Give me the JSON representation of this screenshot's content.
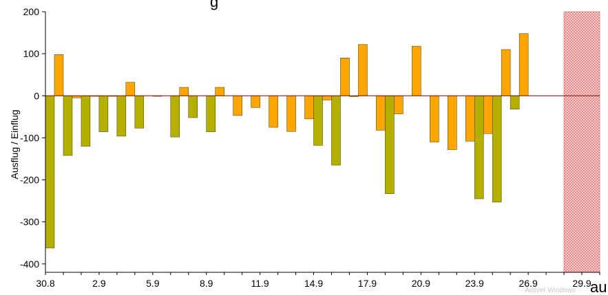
{
  "chart_data": {
    "type": "bar",
    "title": "",
    "ylabel": "Ausflug / Einflug",
    "xlabel": "",
    "ylim": [
      -420,
      200
    ],
    "y_ticks": [
      "200",
      "100",
      "0",
      "-100",
      "-200",
      "-300",
      "-400"
    ],
    "x_ticks": [
      "30.8",
      "2.9",
      "5.9",
      "8.9",
      "11.9",
      "14.9",
      "17.9",
      "20.9",
      "23.9",
      "26.9",
      "29.9"
    ],
    "num_days": 31,
    "shaded_from_day": 29,
    "colors": {
      "ausflug": "#ffa500",
      "einflug": "#b5b000",
      "shaded": "#f08080",
      "zero_line": "#800000"
    },
    "series": [
      {
        "values": [
          98,
          -5,
          0,
          0,
          32,
          null,
          null,
          20,
          null,
          20,
          -47,
          -28,
          -75,
          -85,
          -55,
          -10,
          90,
          122,
          -82,
          -43,
          118,
          -110,
          -128,
          -108,
          -90,
          110,
          148,
          null
        ]
      },
      {
        "values": [
          -362,
          -142,
          -120,
          -86,
          -96,
          -77,
          -1,
          -98,
          -52,
          -86,
          null,
          null,
          null,
          null,
          null,
          -118,
          -165,
          -2,
          null,
          -233,
          null,
          null,
          null,
          null,
          -245,
          -253,
          -32,
          null
        ]
      }
    ],
    "clipped_title_text": "g",
    "clipped_label_text": "au",
    "watermark_text": "Activer Windows"
  }
}
